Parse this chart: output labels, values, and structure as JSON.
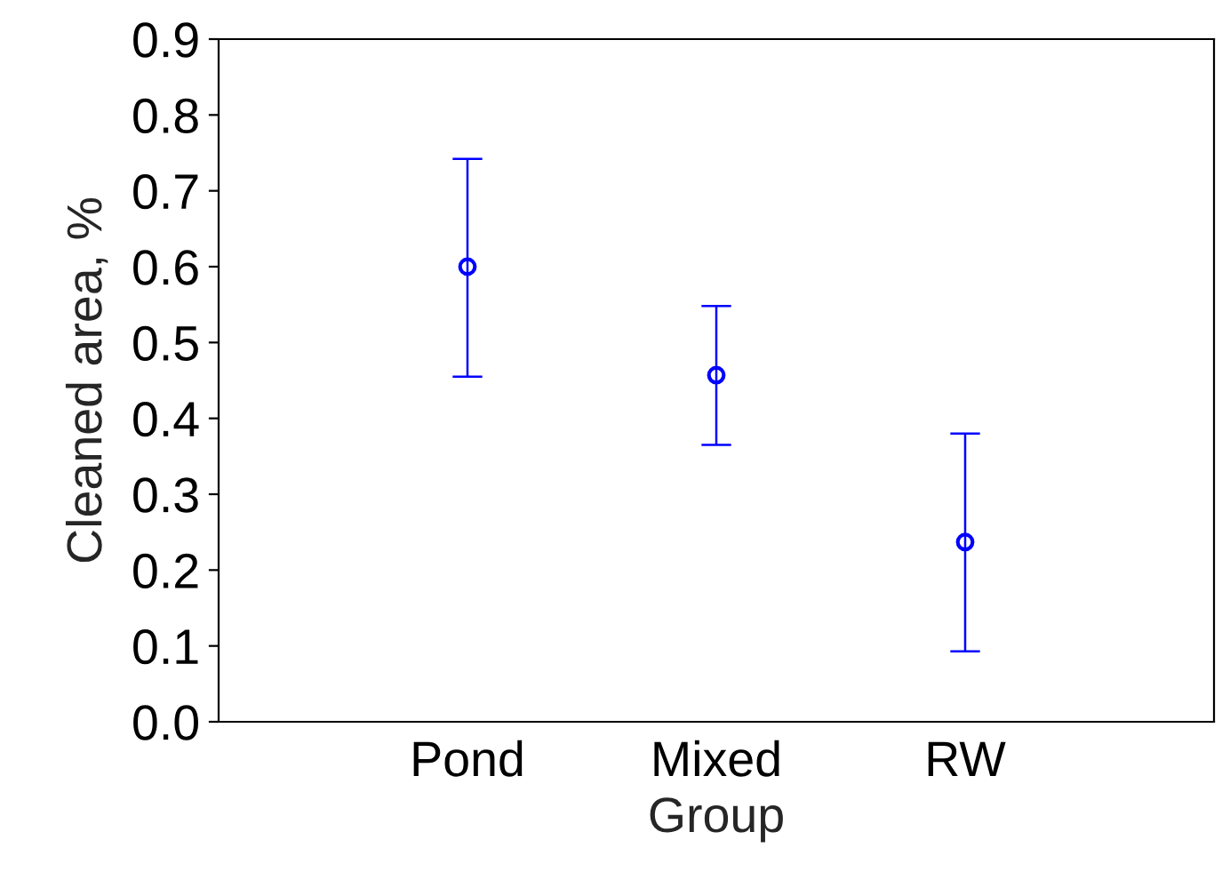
{
  "chart_data": {
    "type": "scatter",
    "xlabel": "Group",
    "ylabel": "Cleaned area, %",
    "categories": [
      "Pond",
      "Mixed",
      "RW"
    ],
    "series": [
      {
        "color": "#0000ff",
        "values": [
          0.6,
          0.457,
          0.237
        ],
        "errors": [
          [
            0.455,
            0.742
          ],
          [
            0.365,
            0.548
          ],
          [
            0.093,
            0.38
          ]
        ]
      }
    ],
    "ylim": [
      0.0,
      0.9
    ],
    "yticks": [
      {
        "value": 0,
        "label": "0.0"
      },
      0.1,
      0.2,
      0.3,
      0.4,
      0.5,
      0.6,
      0.7,
      0.8,
      0.9
    ],
    "marker": "circle",
    "grid": false
  }
}
